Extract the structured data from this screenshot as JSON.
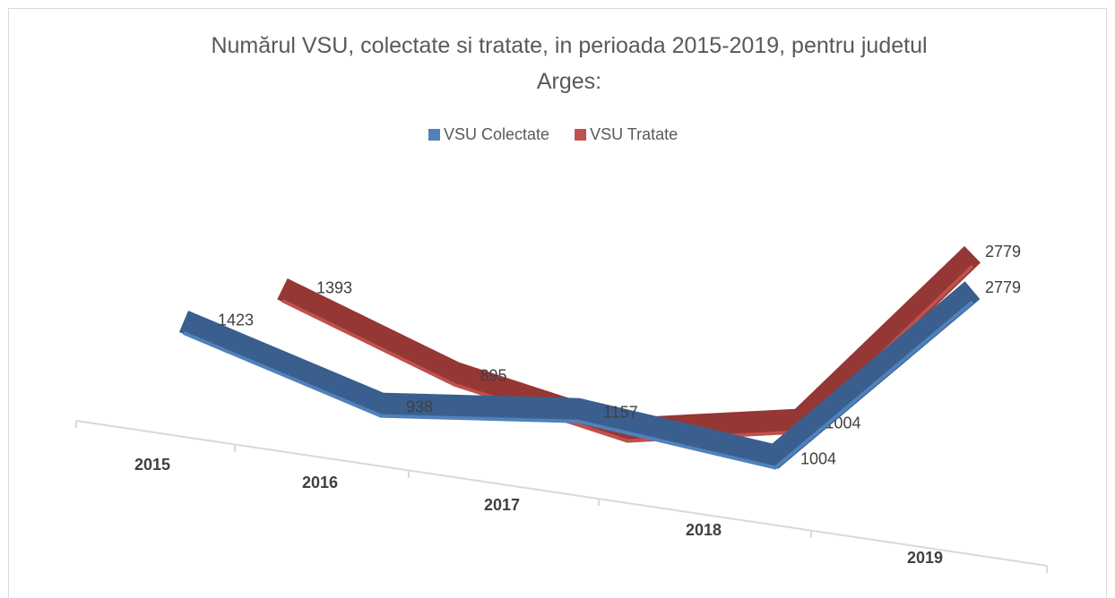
{
  "chart_data": {
    "type": "line",
    "title": "Numărul VSU, colectate si tratate, in perioada 2015-2019, pentru judetul Arges:",
    "categories": [
      "2015",
      "2016",
      "2017",
      "2018",
      "2019"
    ],
    "series": [
      {
        "name": "VSU Colectate",
        "color": "#4f81bd",
        "values": [
          1423,
          938,
          1157,
          1004,
          2779
        ]
      },
      {
        "name": "VSU Tratate",
        "color": "#c0504d",
        "values": [
          1393,
          895,
          654,
          1004,
          2779
        ]
      }
    ],
    "legend": "top"
  }
}
